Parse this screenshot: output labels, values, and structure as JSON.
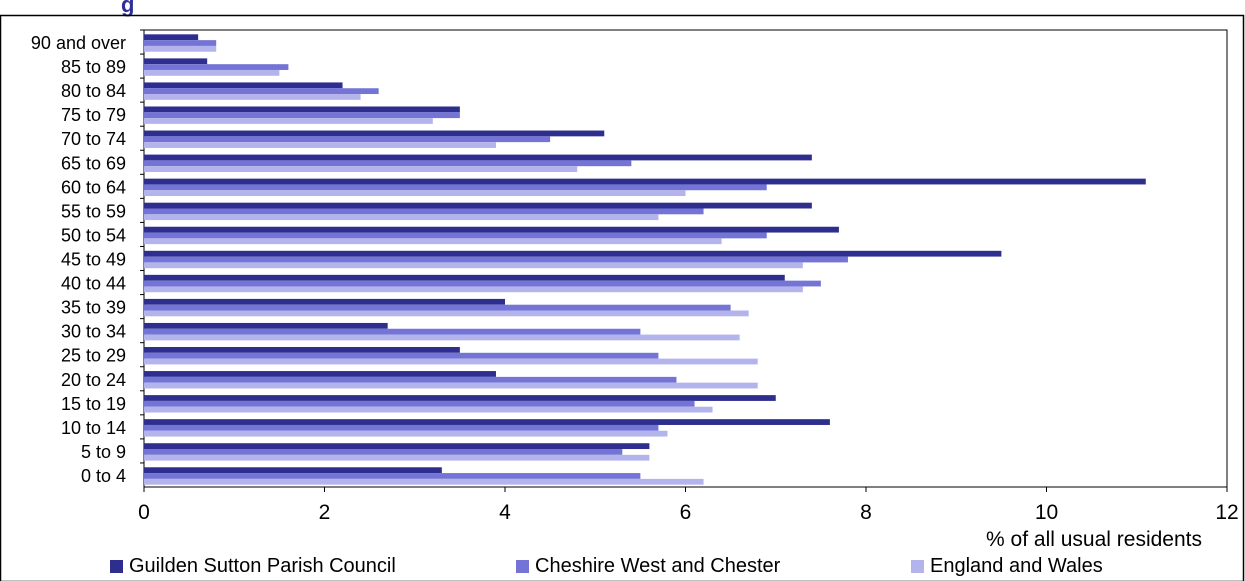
{
  "header_partial": "g",
  "colors": {
    "title": "#2E2E9A",
    "frame": "#000000"
  },
  "chart_data": {
    "type": "bar",
    "orientation": "horizontal",
    "categories": [
      "0 to 4",
      "5 to 9",
      "10 to 14",
      "15 to 19",
      "20 to 24",
      "25 to 29",
      "30 to 34",
      "35 to 39",
      "40 to 44",
      "45 to 49",
      "50 to 54",
      "55 to 59",
      "60 to 64",
      "65 to 69",
      "70 to 74",
      "75 to 79",
      "80 to 84",
      "85 to 89",
      "90 and over"
    ],
    "series": [
      {
        "name": "Guilden Sutton Parish Council",
        "color": "#2E2E8E",
        "values": [
          3.3,
          5.6,
          7.6,
          7.0,
          3.9,
          3.5,
          2.7,
          4.0,
          7.1,
          9.5,
          7.7,
          7.4,
          11.1,
          7.4,
          5.1,
          3.5,
          2.2,
          0.7,
          0.6
        ]
      },
      {
        "name": "Cheshire West and Chester",
        "color": "#7474D6",
        "values": [
          5.5,
          5.3,
          5.7,
          6.1,
          5.9,
          5.7,
          5.5,
          6.5,
          7.5,
          7.8,
          6.9,
          6.2,
          6.9,
          5.4,
          4.5,
          3.5,
          2.6,
          1.6,
          0.8
        ]
      },
      {
        "name": "England and Wales",
        "color": "#B4B4EC",
        "values": [
          6.2,
          5.6,
          5.8,
          6.3,
          6.8,
          6.8,
          6.6,
          6.7,
          7.3,
          7.3,
          6.4,
          5.7,
          6.0,
          4.8,
          3.9,
          3.2,
          2.4,
          1.5,
          0.8
        ]
      }
    ],
    "xlabel": "% of all usual residents",
    "xlim": [
      0,
      12
    ],
    "xticks": [
      "0",
      "2",
      "4",
      "6",
      "8",
      "10",
      "12"
    ],
    "legend_position": "bottom",
    "grid": false
  }
}
